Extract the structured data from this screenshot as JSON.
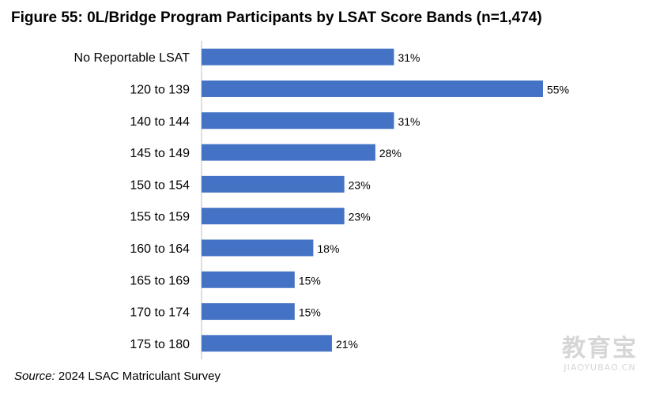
{
  "chart_data": {
    "type": "bar",
    "orientation": "horizontal",
    "title": "Figure 55: 0L/Bridge Program Participants by LSAT Score Bands (n=1,474)",
    "categories": [
      "No Reportable LSAT",
      "120 to 139",
      "140 to 144",
      "145 to 149",
      "150 to 154",
      "155 to 159",
      "160 to 164",
      "165 to 169",
      "170 to 174",
      "175 to 180"
    ],
    "values": [
      31,
      55,
      31,
      28,
      23,
      23,
      18,
      15,
      15,
      21
    ],
    "value_labels": [
      "31%",
      "55%",
      "31%",
      "28%",
      "23%",
      "23%",
      "18%",
      "15%",
      "15%",
      "21%"
    ],
    "xlim": [
      0,
      55
    ],
    "bar_color": "#4472c4",
    "axis_color": "#bfbfbf",
    "grid": false,
    "legend": "none"
  },
  "source_prefix": "Source:",
  "source_text": " 2024 LSAC Matriculant Survey",
  "watermark": {
    "main": "教育宝",
    "sub": "JIAOYUBAO.CN"
  }
}
